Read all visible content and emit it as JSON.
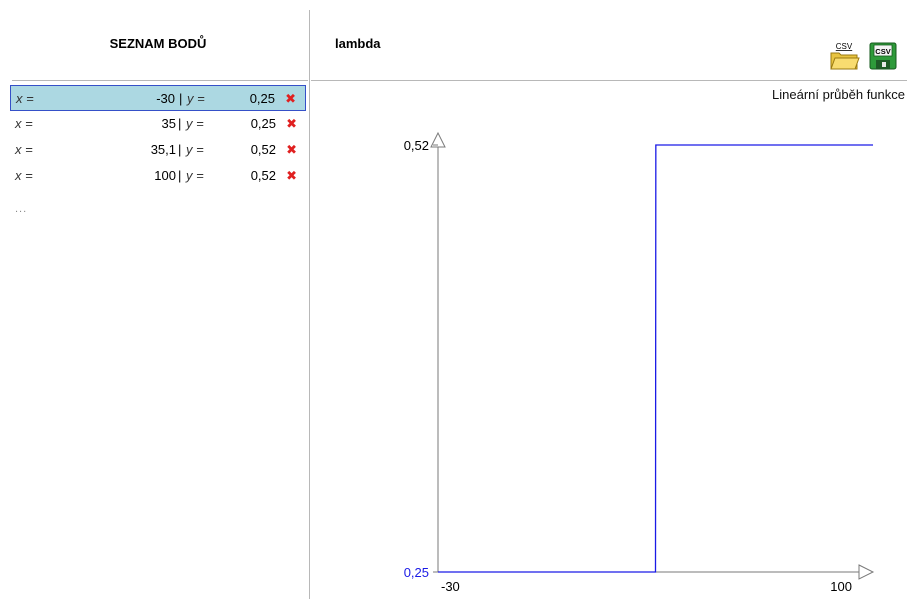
{
  "left_panel": {
    "title": "SEZNAM BODŮ",
    "rows": [
      {
        "x_label": "x =",
        "x": "-30",
        "sep": "| ",
        "y_label": "y =",
        "y": "0,25",
        "delete": "✖"
      },
      {
        "x_label": "x =",
        "x": "35",
        "sep": "| ",
        "y_label": "y =",
        "y": "0,25",
        "delete": "✖"
      },
      {
        "x_label": "x =",
        "x": "35,1",
        "sep": "| ",
        "y_label": "y =",
        "y": "0,52",
        "delete": "✖"
      },
      {
        "x_label": "x =",
        "x": "100",
        "sep": "| ",
        "y_label": "y =",
        "y": "0,52",
        "delete": "✖"
      }
    ],
    "more": "..."
  },
  "right_panel": {
    "title": "lambda",
    "mode_label": "Lineární průběh funkce",
    "buttons": {
      "open_csv_icon": "folder-csv-icon",
      "open_csv_text": "CSV",
      "save_csv_icon": "save-csv-icon",
      "save_csv_text": "CSV"
    }
  },
  "colors": {
    "selection_bg": "#acd8e2",
    "selection_border": "#3550c8",
    "line": "#1a1ae6",
    "delete": "#e02020",
    "axis": "#7a7a7a"
  },
  "chart_data": {
    "type": "line",
    "x": [
      -30,
      35,
      35.1,
      100
    ],
    "y": [
      0.25,
      0.25,
      0.52,
      0.52
    ],
    "xlim": [
      -30,
      100
    ],
    "ylim": [
      0.25,
      0.52
    ],
    "x_ticks": [
      "-30",
      "100"
    ],
    "y_ticks": [
      "0,25",
      "0,52"
    ],
    "y_tick_colors": [
      "#1a1ae6",
      "#000000"
    ]
  }
}
